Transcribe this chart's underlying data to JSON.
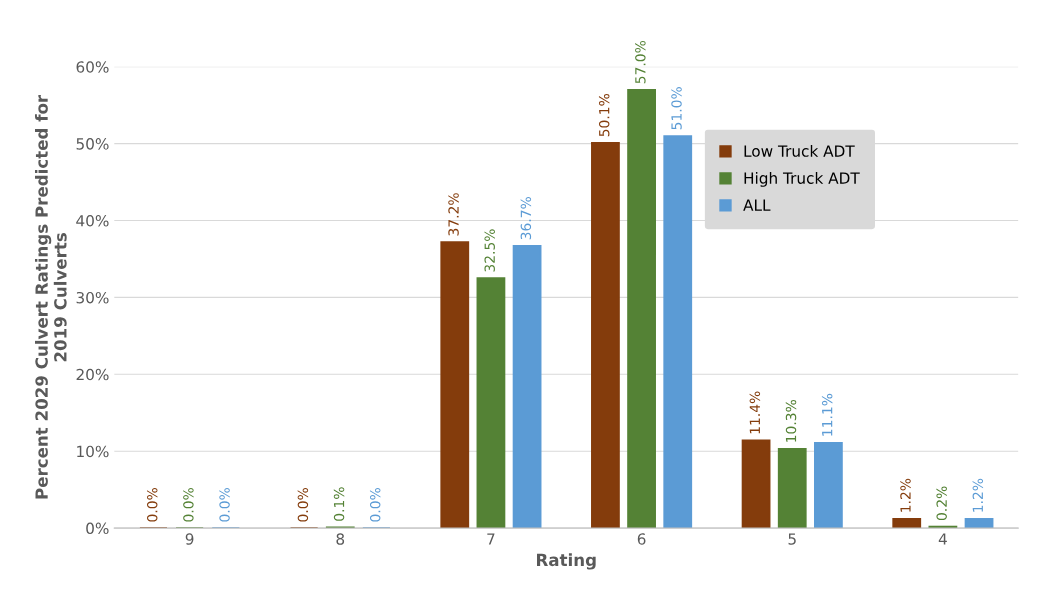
{
  "chart_data": {
    "type": "bar",
    "xlabel": "Rating",
    "ylabel": "Percent 2029 Culvert Ratings Predicted for\n2019 Culverts",
    "categories": [
      "9",
      "8",
      "7",
      "6",
      "5",
      "4"
    ],
    "series": [
      {
        "name": "Low Truck ADT",
        "color": "#843c0c",
        "values": [
          0.0,
          0.0,
          37.2,
          50.1,
          11.4,
          1.2
        ],
        "value_labels": [
          "0.0%",
          "0.0%",
          "37.2%",
          "50.1%",
          "11.4%",
          "1.2%"
        ]
      },
      {
        "name": "High Truck ADT",
        "color": "#548235",
        "values": [
          0.0,
          0.1,
          32.5,
          57.0,
          10.3,
          0.2
        ],
        "value_labels": [
          "0.0%",
          "0.1%",
          "32.5%",
          "57.0%",
          "10.3%",
          "0.2%"
        ]
      },
      {
        "name": "ALL",
        "color": "#5b9bd5",
        "values": [
          0.0,
          0.0,
          36.7,
          51.0,
          11.1,
          1.2
        ],
        "value_labels": [
          "0.0%",
          "0.0%",
          "36.7%",
          "51.0%",
          "11.1%",
          "1.2%"
        ]
      }
    ],
    "ylim": [
      0,
      60
    ],
    "yticks": [
      {
        "value": 0,
        "label": "0%"
      },
      {
        "value": 10,
        "label": "10%"
      },
      {
        "value": 20,
        "label": "20%"
      },
      {
        "value": 30,
        "label": "30%"
      },
      {
        "value": 40,
        "label": "40%"
      },
      {
        "value": 50,
        "label": "50%"
      },
      {
        "value": 60,
        "label": "60%"
      }
    ],
    "grid": "y",
    "legend": "top right"
  }
}
